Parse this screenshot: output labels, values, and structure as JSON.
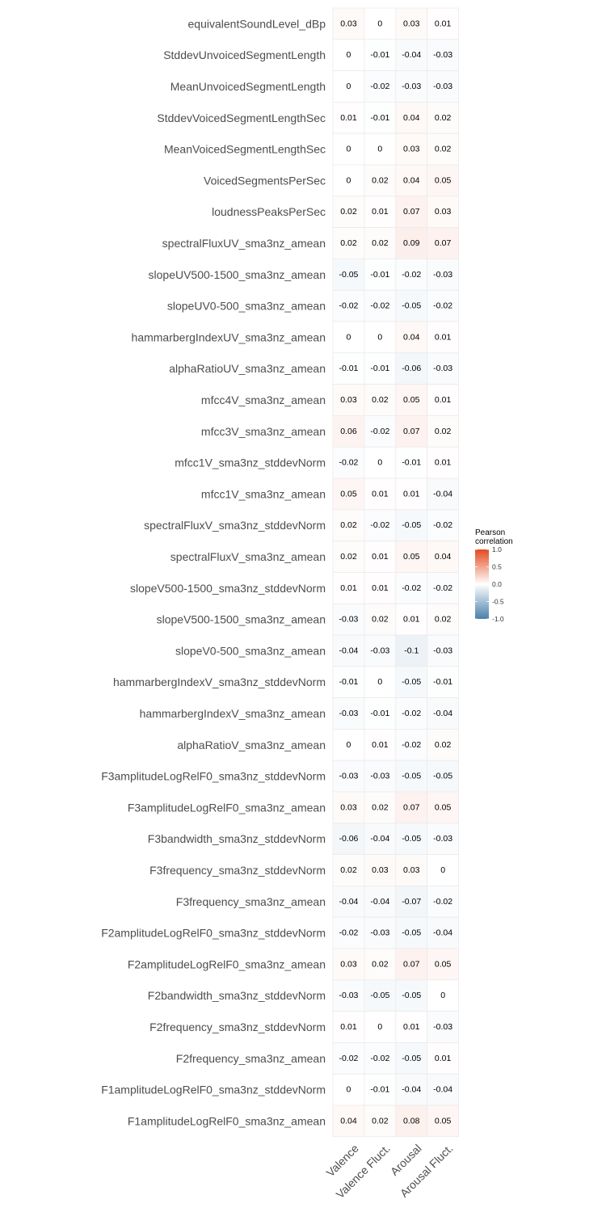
{
  "chart_data": {
    "type": "heatmap",
    "rows": [
      "equivalentSoundLevel_dBp",
      "StddevUnvoicedSegmentLength",
      "MeanUnvoicedSegmentLength",
      "StddevVoicedSegmentLengthSec",
      "MeanVoicedSegmentLengthSec",
      "VoicedSegmentsPerSec",
      "loudnessPeaksPerSec",
      "spectralFluxUV_sma3nz_amean",
      "slopeUV500-1500_sma3nz_amean",
      "slopeUV0-500_sma3nz_amean",
      "hammarbergIndexUV_sma3nz_amean",
      "alphaRatioUV_sma3nz_amean",
      "mfcc4V_sma3nz_amean",
      "mfcc3V_sma3nz_amean",
      "mfcc1V_sma3nz_stddevNorm",
      "mfcc1V_sma3nz_amean",
      "spectralFluxV_sma3nz_stddevNorm",
      "spectralFluxV_sma3nz_amean",
      "slopeV500-1500_sma3nz_stddevNorm",
      "slopeV500-1500_sma3nz_amean",
      "slopeV0-500_sma3nz_amean",
      "hammarbergIndexV_sma3nz_stddevNorm",
      "hammarbergIndexV_sma3nz_amean",
      "alphaRatioV_sma3nz_amean",
      "F3amplitudeLogRelF0_sma3nz_stddevNorm",
      "F3amplitudeLogRelF0_sma3nz_amean",
      "F3bandwidth_sma3nz_stddevNorm",
      "F3frequency_sma3nz_stddevNorm",
      "F3frequency_sma3nz_amean",
      "F2amplitudeLogRelF0_sma3nz_stddevNorm",
      "F2amplitudeLogRelF0_sma3nz_amean",
      "F2bandwidth_sma3nz_stddevNorm",
      "F2frequency_sma3nz_stddevNorm",
      "F2frequency_sma3nz_amean",
      "F1amplitudeLogRelF0_sma3nz_stddevNorm",
      "F1amplitudeLogRelF0_sma3nz_amean"
    ],
    "columns": [
      "Valence",
      "Valence Fluct.",
      "Arousal",
      "Arousal Fluct."
    ],
    "values": [
      [
        0.03,
        0,
        0.03,
        0.01
      ],
      [
        0,
        -0.01,
        -0.04,
        -0.03
      ],
      [
        0,
        -0.02,
        -0.03,
        -0.03
      ],
      [
        0.01,
        -0.01,
        0.04,
        0.02
      ],
      [
        0,
        0,
        0.03,
        0.02
      ],
      [
        0,
        0.02,
        0.04,
        0.05
      ],
      [
        0.02,
        0.01,
        0.07,
        0.03
      ],
      [
        0.02,
        0.02,
        0.09,
        0.07
      ],
      [
        -0.05,
        -0.01,
        -0.02,
        -0.03
      ],
      [
        -0.02,
        -0.02,
        -0.05,
        -0.02
      ],
      [
        0,
        0,
        0.04,
        0.01
      ],
      [
        -0.01,
        -0.01,
        -0.06,
        -0.03
      ],
      [
        0.03,
        0.02,
        0.05,
        0.01
      ],
      [
        0.06,
        -0.02,
        0.07,
        0.02
      ],
      [
        -0.02,
        0,
        -0.01,
        0.01
      ],
      [
        0.05,
        0.01,
        0.01,
        -0.04
      ],
      [
        0.02,
        -0.02,
        -0.05,
        -0.02
      ],
      [
        0.02,
        0.01,
        0.05,
        0.04
      ],
      [
        0.01,
        0.01,
        -0.02,
        -0.02
      ],
      [
        -0.03,
        0.02,
        0.01,
        0.02
      ],
      [
        -0.04,
        -0.03,
        -0.1,
        -0.03
      ],
      [
        -0.01,
        0,
        -0.05,
        -0.01
      ],
      [
        -0.03,
        -0.01,
        -0.02,
        -0.04
      ],
      [
        0,
        0.01,
        -0.02,
        0.02
      ],
      [
        -0.03,
        -0.03,
        -0.05,
        -0.05
      ],
      [
        0.03,
        0.02,
        0.07,
        0.05
      ],
      [
        -0.06,
        -0.04,
        -0.05,
        -0.03
      ],
      [
        0.02,
        0.03,
        0.03,
        0
      ],
      [
        -0.04,
        -0.04,
        -0.07,
        -0.02
      ],
      [
        -0.02,
        -0.03,
        -0.05,
        -0.04
      ],
      [
        0.03,
        0.02,
        0.07,
        0.05
      ],
      [
        -0.03,
        -0.05,
        -0.05,
        0
      ],
      [
        0.01,
        0,
        0.01,
        -0.03
      ],
      [
        -0.02,
        -0.02,
        -0.05,
        0.01
      ],
      [
        0,
        -0.01,
        -0.04,
        -0.04
      ],
      [
        0.04,
        0.02,
        0.08,
        0.05
      ]
    ],
    "value_range": [
      -1.0,
      1.0
    ],
    "legend": {
      "title": [
        "Pearson",
        "correlation"
      ],
      "ticks": [
        "1.0",
        "0.5",
        "0.0",
        "-0.5",
        "-1.0"
      ],
      "tick_values": [
        1.0,
        0.5,
        0.0,
        -0.5,
        -1.0
      ],
      "placement": "right"
    },
    "colors": {
      "high": "#e34a1f",
      "mid": "#ffffff",
      "low": "#4a7fac",
      "cell_border": "#ebebeb"
    }
  }
}
